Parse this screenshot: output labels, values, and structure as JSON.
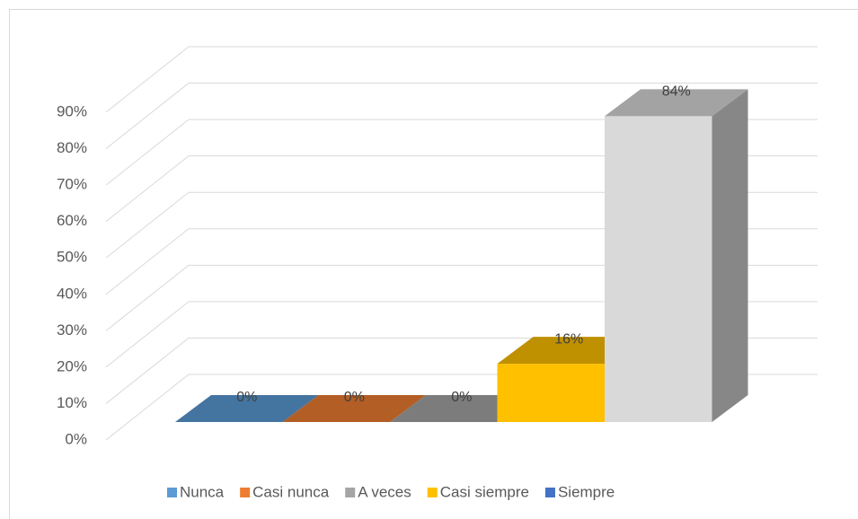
{
  "chart_data": {
    "type": "bar3d",
    "categories": [
      "Nunca",
      "Casi nunca",
      "A veces",
      "Casi siempre",
      "Siempre"
    ],
    "values": [
      0,
      0,
      0,
      16,
      84
    ],
    "value_labels": [
      "0%",
      "0%",
      "0%",
      "16%",
      "84%"
    ],
    "colors": [
      "#5b9bd5",
      "#ed7d31",
      "#a5a5a5",
      "#ffc000",
      "#4472c4"
    ],
    "bar_colors": [
      "#5b9bd5",
      "#ed7d31",
      "#a5a5a5",
      "#ffc000",
      "#d9d9d9"
    ],
    "ylim": [
      0,
      90
    ],
    "yticks": [
      {
        "value": 0,
        "label": "0%"
      },
      {
        "value": 10,
        "label": "10%"
      },
      {
        "value": 20,
        "label": "20%"
      },
      {
        "value": 30,
        "label": "30%"
      },
      {
        "value": 40,
        "label": "40%"
      },
      {
        "value": 50,
        "label": "50%"
      },
      {
        "value": 60,
        "label": "60%"
      },
      {
        "value": 70,
        "label": "70%"
      },
      {
        "value": 80,
        "label": "80%"
      },
      {
        "value": 90,
        "label": "90%"
      }
    ],
    "grid": true,
    "legend": "bottom"
  }
}
